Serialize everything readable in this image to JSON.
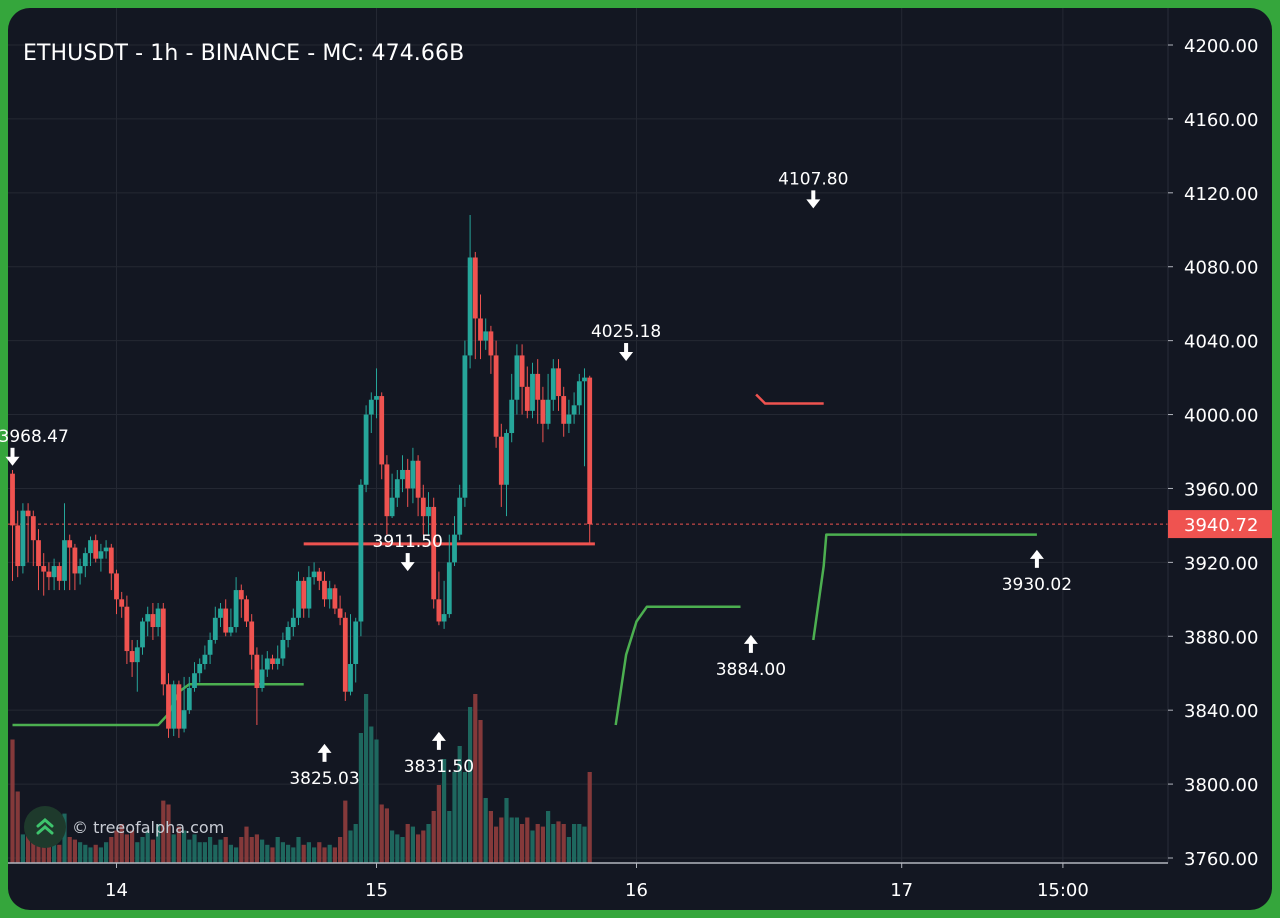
{
  "title": "ETHUSDT - 1h - BINANCE - MC: 474.66B",
  "watermark": "© treeofalpha.com",
  "chart_data": {
    "type": "candlestick",
    "symbol": "ETHUSDT",
    "interval": "1h",
    "exchange": "BINANCE",
    "market_cap": "MC: 474.66B",
    "ylim": [
      3760,
      4200
    ],
    "y_ticks": [
      "4200.00",
      "4160.00",
      "4120.00",
      "4080.00",
      "4040.00",
      "4000.00",
      "3960.00",
      "3920.00",
      "3880.00",
      "3840.00",
      "3800.00",
      "3760.00"
    ],
    "x_ticks": [
      "14",
      "15",
      "16",
      "17",
      "15:00"
    ],
    "last_price": "3940.72",
    "colors": {
      "up": "#26a69a",
      "down": "#ef5350",
      "level_line": "#ef5350",
      "trail": "#4caf50",
      "background": "#131722"
    },
    "candles": [
      [
        3968,
        3940,
        3910,
        3970
      ],
      [
        3940,
        3918,
        3912,
        3948
      ],
      [
        3918,
        3948,
        3914,
        3952
      ],
      [
        3948,
        3945,
        3920,
        3952
      ],
      [
        3945,
        3932,
        3918,
        3948
      ],
      [
        3932,
        3918,
        3905,
        3938
      ],
      [
        3918,
        3915,
        3902,
        3925
      ],
      [
        3915,
        3912,
        3905,
        3920
      ],
      [
        3912,
        3918,
        3905,
        3922
      ],
      [
        3918,
        3910,
        3905,
        3920
      ],
      [
        3910,
        3932,
        3905,
        3952
      ],
      [
        3932,
        3928,
        3905,
        3935
      ],
      [
        3928,
        3914,
        3905,
        3930
      ],
      [
        3914,
        3918,
        3908,
        3922
      ],
      [
        3918,
        3925,
        3912,
        3928
      ],
      [
        3925,
        3932,
        3918,
        3934
      ],
      [
        3932,
        3922,
        3920,
        3935
      ],
      [
        3922,
        3926,
        3915,
        3930
      ],
      [
        3926,
        3928,
        3922,
        3932
      ],
      [
        3928,
        3914,
        3905,
        3930
      ],
      [
        3914,
        3900,
        3892,
        3916
      ],
      [
        3900,
        3896,
        3890,
        3904
      ],
      [
        3896,
        3872,
        3865,
        3902
      ],
      [
        3872,
        3866,
        3858,
        3878
      ],
      [
        3866,
        3874,
        3850,
        3878
      ],
      [
        3874,
        3888,
        3870,
        3890
      ],
      [
        3888,
        3892,
        3880,
        3896
      ],
      [
        3892,
        3885,
        3878,
        3898
      ],
      [
        3885,
        3895,
        3880,
        3898
      ],
      [
        3895,
        3854,
        3848,
        3898
      ],
      [
        3854,
        3830,
        3825,
        3860
      ],
      [
        3830,
        3854,
        3826,
        3856
      ],
      [
        3854,
        3830,
        3825,
        3856
      ],
      [
        3830,
        3840,
        3828,
        3858
      ],
      [
        3840,
        3852,
        3838,
        3858
      ],
      [
        3852,
        3860,
        3850,
        3866
      ],
      [
        3860,
        3865,
        3855,
        3868
      ],
      [
        3865,
        3870,
        3862,
        3875
      ],
      [
        3870,
        3878,
        3865,
        3882
      ],
      [
        3878,
        3890,
        3876,
        3896
      ],
      [
        3890,
        3895,
        3885,
        3898
      ],
      [
        3895,
        3882,
        3880,
        3900
      ],
      [
        3882,
        3885,
        3880,
        3895
      ],
      [
        3885,
        3905,
        3882,
        3912
      ],
      [
        3905,
        3900,
        3890,
        3908
      ],
      [
        3900,
        3888,
        3885,
        3902
      ],
      [
        3888,
        3870,
        3862,
        3892
      ],
      [
        3870,
        3852,
        3832,
        3874
      ],
      [
        3852,
        3862,
        3850,
        3870
      ],
      [
        3862,
        3868,
        3858,
        3872
      ],
      [
        3868,
        3865,
        3862,
        3870
      ],
      [
        3865,
        3868,
        3862,
        3875
      ],
      [
        3868,
        3878,
        3864,
        3882
      ],
      [
        3878,
        3885,
        3874,
        3888
      ],
      [
        3885,
        3890,
        3880,
        3895
      ],
      [
        3890,
        3910,
        3886,
        3915
      ],
      [
        3910,
        3895,
        3890,
        3912
      ],
      [
        3895,
        3912,
        3890,
        3918
      ],
      [
        3912,
        3915,
        3908,
        3920
      ],
      [
        3915,
        3910,
        3905,
        3917
      ],
      [
        3910,
        3900,
        3896,
        3915
      ],
      [
        3900,
        3906,
        3895,
        3910
      ],
      [
        3906,
        3895,
        3892,
        3908
      ],
      [
        3895,
        3890,
        3886,
        3902
      ],
      [
        3890,
        3850,
        3845,
        3893
      ],
      [
        3850,
        3865,
        3848,
        3892
      ],
      [
        3865,
        3888,
        3855,
        3890
      ],
      [
        3888,
        3962,
        3880,
        3965
      ],
      [
        3962,
        4000,
        3958,
        4005
      ],
      [
        4000,
        4008,
        3990,
        4012
      ],
      [
        4008,
        4010,
        3998,
        4025
      ],
      [
        4010,
        3973,
        3965,
        4012
      ],
      [
        3973,
        3945,
        3935,
        3978
      ],
      [
        3945,
        3955,
        3944,
        3968
      ],
      [
        3955,
        3965,
        3950,
        3970
      ],
      [
        3965,
        3970,
        3958,
        3978
      ],
      [
        3970,
        3960,
        3950,
        3976
      ],
      [
        3960,
        3975,
        3952,
        3982
      ],
      [
        3975,
        3955,
        3945,
        3978
      ],
      [
        3955,
        3945,
        3935,
        3962
      ],
      [
        3945,
        3950,
        3935,
        3958
      ],
      [
        3950,
        3900,
        3895,
        3955
      ],
      [
        3900,
        3888,
        3886,
        3915
      ],
      [
        3888,
        3892,
        3884,
        3910
      ],
      [
        3892,
        3920,
        3890,
        3935
      ],
      [
        3920,
        3935,
        3918,
        3945
      ],
      [
        3935,
        3955,
        3932,
        3962
      ],
      [
        3955,
        4032,
        3950,
        4040
      ],
      [
        4032,
        4085,
        4025,
        4108
      ],
      [
        4085,
        4052,
        4030,
        4088
      ],
      [
        4052,
        4040,
        4030,
        4065
      ],
      [
        4040,
        4045,
        4035,
        4052
      ],
      [
        4045,
        4032,
        4022,
        4048
      ],
      [
        4032,
        3988,
        3982,
        4040
      ],
      [
        3988,
        3962,
        3950,
        3995
      ],
      [
        3962,
        3990,
        3945,
        3992
      ],
      [
        3990,
        4008,
        3985,
        4022
      ],
      [
        4008,
        4032,
        4000,
        4038
      ],
      [
        4032,
        4015,
        4000,
        4038
      ],
      [
        4015,
        4002,
        3998,
        4026
      ],
      [
        4002,
        4022,
        3998,
        4028
      ],
      [
        4022,
        4008,
        3995,
        4030
      ],
      [
        4008,
        3995,
        3985,
        4015
      ],
      [
        3995,
        4008,
        3992,
        4022
      ],
      [
        4008,
        4025,
        4002,
        4030
      ],
      [
        4025,
        4010,
        4002,
        4030
      ],
      [
        4010,
        3995,
        3988,
        4015
      ],
      [
        3995,
        4000,
        3990,
        4008
      ],
      [
        4000,
        4005,
        3995,
        4012
      ],
      [
        4005,
        4018,
        4000,
        4022
      ],
      [
        4018,
        4020,
        3972,
        4025
      ],
      [
        4020,
        3940.72,
        3930.02,
        4021
      ]
    ],
    "volume_relative": [
      0.95,
      0.55,
      0.22,
      0.3,
      0.2,
      0.25,
      0.18,
      0.15,
      0.2,
      0.14,
      0.38,
      0.2,
      0.18,
      0.16,
      0.14,
      0.12,
      0.14,
      0.12,
      0.16,
      0.2,
      0.25,
      0.3,
      0.22,
      0.25,
      0.16,
      0.2,
      0.25,
      0.18,
      0.3,
      0.48,
      0.45,
      0.22,
      0.28,
      0.25,
      0.18,
      0.22,
      0.16,
      0.16,
      0.2,
      0.14,
      0.18,
      0.2,
      0.14,
      0.12,
      0.2,
      0.28,
      0.2,
      0.22,
      0.18,
      0.14,
      0.12,
      0.2,
      0.16,
      0.14,
      0.12,
      0.2,
      0.14,
      0.16,
      0.12,
      0.16,
      0.12,
      0.14,
      0.12,
      0.2,
      0.48,
      0.25,
      0.3,
      1.0,
      1.3,
      1.05,
      0.95,
      0.45,
      0.42,
      0.25,
      0.22,
      0.2,
      0.3,
      0.28,
      0.22,
      0.25,
      0.3,
      0.4,
      0.6,
      0.8,
      0.4,
      0.7,
      0.9,
      0.7,
      1.2,
      1.3,
      1.1,
      0.5,
      0.4,
      0.28,
      0.35,
      0.5,
      0.35,
      0.35,
      0.3,
      0.35,
      0.25,
      0.3,
      0.28,
      0.4,
      0.3,
      0.32,
      0.3,
      0.2,
      0.3,
      0.3,
      0.28,
      0.7,
      0.9
    ],
    "resistance_lines": [
      {
        "from": 56,
        "to": 112,
        "value": 3930
      },
      {
        "from": 143,
        "to": 156,
        "value": 4006
      }
    ],
    "trail_points": [
      [
        0,
        3832
      ],
      [
        28,
        3832
      ],
      [
        30,
        3838
      ],
      [
        32,
        3850
      ],
      [
        34,
        3854
      ],
      [
        56,
        3854
      ],
      [
        null,
        null
      ],
      [
        116,
        3832
      ],
      [
        118,
        3870
      ],
      [
        120,
        3888
      ],
      [
        122,
        3896
      ],
      [
        140,
        3896
      ],
      [
        null,
        null
      ],
      [
        154,
        3878
      ],
      [
        156,
        3918
      ],
      [
        156.5,
        3935
      ],
      [
        197,
        3935
      ]
    ],
    "annotations": [
      {
        "label": "3968.47",
        "value": 3968.47,
        "index": 0,
        "kind": "high"
      },
      {
        "label": "3911.50",
        "value": 3911.5,
        "index": 76,
        "kind": "high"
      },
      {
        "label": "4025.18",
        "value": 4025.18,
        "index": 118,
        "kind": "high"
      },
      {
        "label": "4107.80",
        "value": 4107.8,
        "index": 154,
        "kind": "high"
      },
      {
        "label": "3825.03",
        "value": 3825.03,
        "index": 60,
        "kind": "low"
      },
      {
        "label": "3831.50",
        "value": 3831.5,
        "index": 82,
        "kind": "low"
      },
      {
        "label": "3884.00",
        "value": 3884.0,
        "index": 142,
        "kind": "low"
      },
      {
        "label": "3930.02",
        "value": 3930.02,
        "index": 197,
        "kind": "low"
      }
    ]
  }
}
